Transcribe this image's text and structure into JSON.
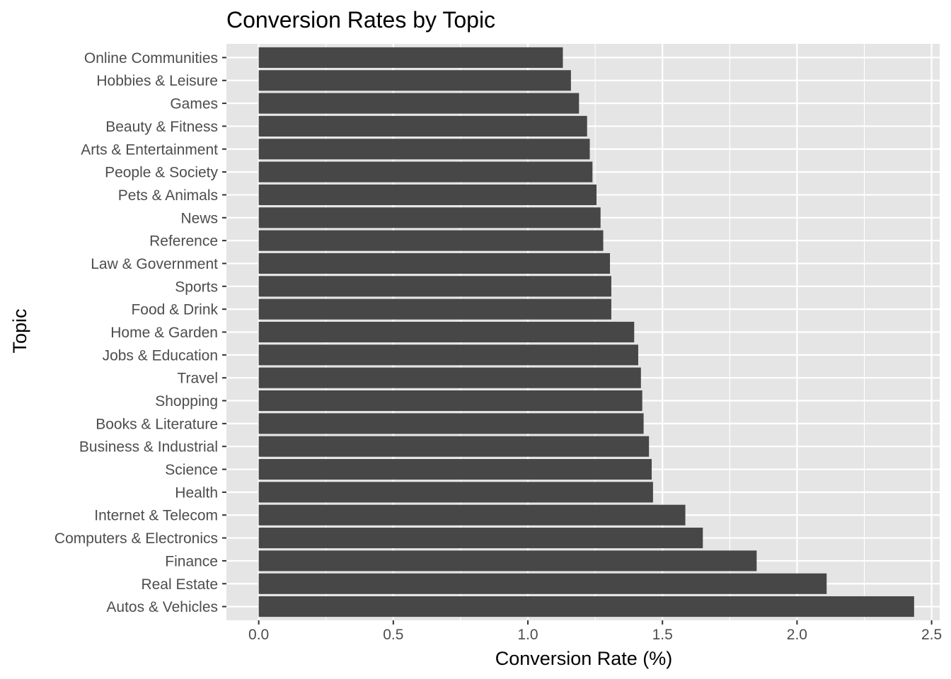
{
  "chart_data": {
    "type": "bar",
    "orientation": "horizontal",
    "title": "Conversion Rates by Topic",
    "xlabel": "Conversion Rate (%)",
    "ylabel": "Topic",
    "xlim": [
      -0.12,
      2.53
    ],
    "x_ticks": [
      "0.0",
      "0.5",
      "1.0",
      "1.5",
      "2.0",
      "2.5"
    ],
    "x_tick_values": [
      0.0,
      0.5,
      1.0,
      1.5,
      2.0,
      2.5
    ],
    "grid": true,
    "legend": "none",
    "bar_color": "#474747",
    "panel_color": "#e5e5e5",
    "gridline_color": "#ffffff",
    "categories": [
      "Online Communities",
      "Hobbies & Leisure",
      "Games",
      "Beauty & Fitness",
      "Arts & Entertainment",
      "People & Society",
      "Pets & Animals",
      "News",
      "Reference",
      "Law & Government",
      "Sports",
      "Food & Drink",
      "Home & Garden",
      "Jobs & Education",
      "Travel",
      "Shopping",
      "Books & Literature",
      "Business & Industrial",
      "Science",
      "Health",
      "Internet & Telecom",
      "Computers & Electronics",
      "Finance",
      "Real Estate",
      "Autos & Vehicles"
    ],
    "values": [
      1.13,
      1.16,
      1.19,
      1.22,
      1.23,
      1.24,
      1.255,
      1.27,
      1.28,
      1.305,
      1.31,
      1.31,
      1.395,
      1.41,
      1.42,
      1.425,
      1.43,
      1.45,
      1.46,
      1.465,
      1.585,
      1.65,
      1.85,
      2.11,
      2.435
    ]
  }
}
